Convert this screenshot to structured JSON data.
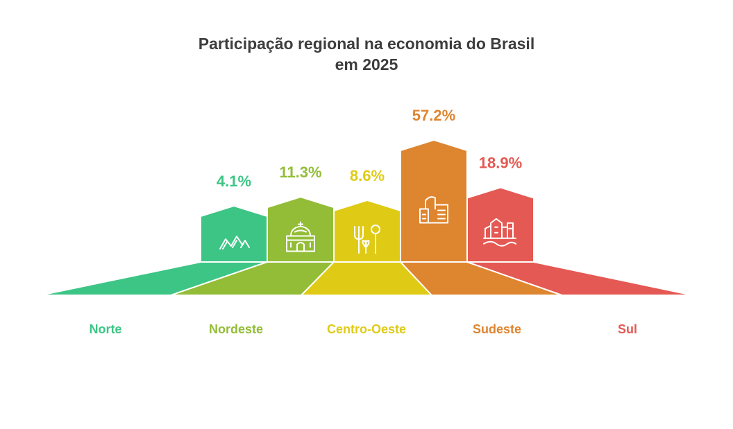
{
  "chart_data": {
    "type": "bar",
    "title": {
      "line1": "Participação regional na economia do Brasil",
      "line2": "em 2025"
    },
    "categories": [
      "Norte",
      "Nordeste",
      "Centro-Oeste",
      "Sudeste",
      "Sul"
    ],
    "values": [
      4.1,
      11.3,
      8.6,
      57.2,
      18.9
    ],
    "value_labels": [
      "4.1%",
      "11.3%",
      "8.6%",
      "57.2%",
      "18.9%"
    ],
    "unit": "%",
    "colors": [
      "#3cc585",
      "#93bd37",
      "#dfcb16",
      "#de8530",
      "#e45953"
    ],
    "icons": [
      "mountains-icon",
      "cathedral-icon",
      "agriculture-icon",
      "industry-icon",
      "city-icon"
    ],
    "grid": false,
    "legend": "none"
  }
}
